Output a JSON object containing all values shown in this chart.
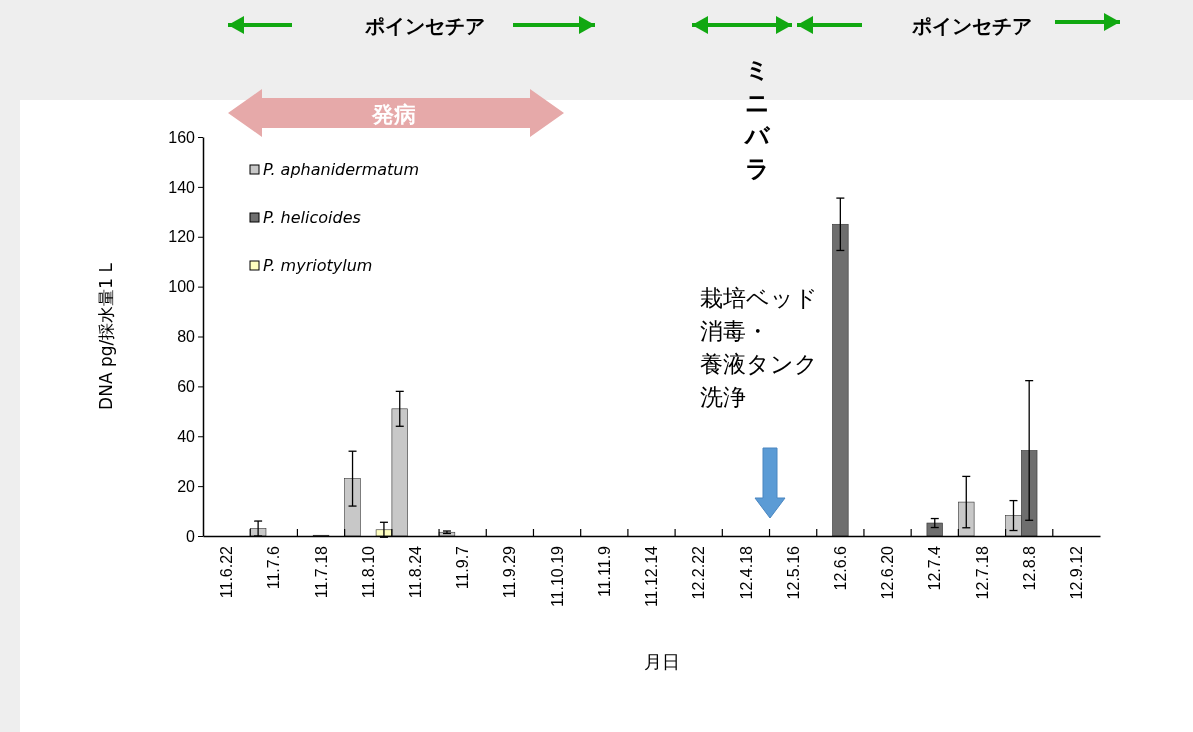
{
  "chart_data": {
    "type": "bar",
    "ylabel": "DNA pg/採水量1 L",
    "xlabel": "月日",
    "categories": [
      "11.6.22",
      "11.7.6",
      "11.7.18",
      "11.8.10",
      "11.8.24",
      "11.9.7",
      "11.9.29",
      "11.10.19",
      "11.11.9",
      "11.12.14",
      "12.2.22",
      "12.4.18",
      "12.5.16",
      "12.6.6",
      "12.6.20",
      "12.7.4",
      "12.7.18",
      "12.8.8",
      "12.9.12"
    ],
    "series": [
      {
        "name": "P. aphanidermatum",
        "color": "#c8c8c8",
        "values": [
          null,
          3,
          null,
          23,
          51,
          1.5,
          null,
          null,
          null,
          null,
          null,
          null,
          null,
          null,
          null,
          null,
          13.6,
          8.2,
          null
        ],
        "errors": [
          null,
          3,
          null,
          11,
          7,
          0.5,
          null,
          null,
          null,
          null,
          null,
          null,
          null,
          null,
          null,
          null,
          10.3,
          6,
          null
        ]
      },
      {
        "name": "P. helicoides",
        "color": "#6e6e6e",
        "values": [
          null,
          null,
          0.3,
          null,
          null,
          null,
          null,
          null,
          null,
          null,
          null,
          null,
          null,
          125,
          null,
          5.2,
          null,
          34.3,
          null
        ],
        "errors": [
          null,
          null,
          null,
          null,
          null,
          null,
          null,
          null,
          null,
          null,
          null,
          null,
          null,
          10.5,
          null,
          1.8,
          null,
          28,
          null
        ]
      },
      {
        "name": "P. myriotylum",
        "color": "#ffffc0",
        "values": [
          null,
          null,
          null,
          2.5,
          null,
          null,
          null,
          null,
          null,
          null,
          null,
          null,
          null,
          null,
          null,
          null,
          null,
          null,
          null
        ],
        "errors": [
          null,
          null,
          null,
          3,
          null,
          null,
          null,
          null,
          null,
          null,
          null,
          null,
          null,
          null,
          null,
          null,
          null,
          null,
          null
        ]
      }
    ],
    "ylim": [
      0,
      160
    ],
    "yticks": [
      0,
      20,
      40,
      60,
      80,
      100,
      120,
      140,
      160
    ],
    "grid": false,
    "legend": "top left",
    "annotations": [
      "ポインセチア",
      "ポインセチア",
      "発病",
      "ミニバラ",
      "栽培ベッド",
      "消毒・",
      "養液タンク",
      "洗浄"
    ]
  }
}
